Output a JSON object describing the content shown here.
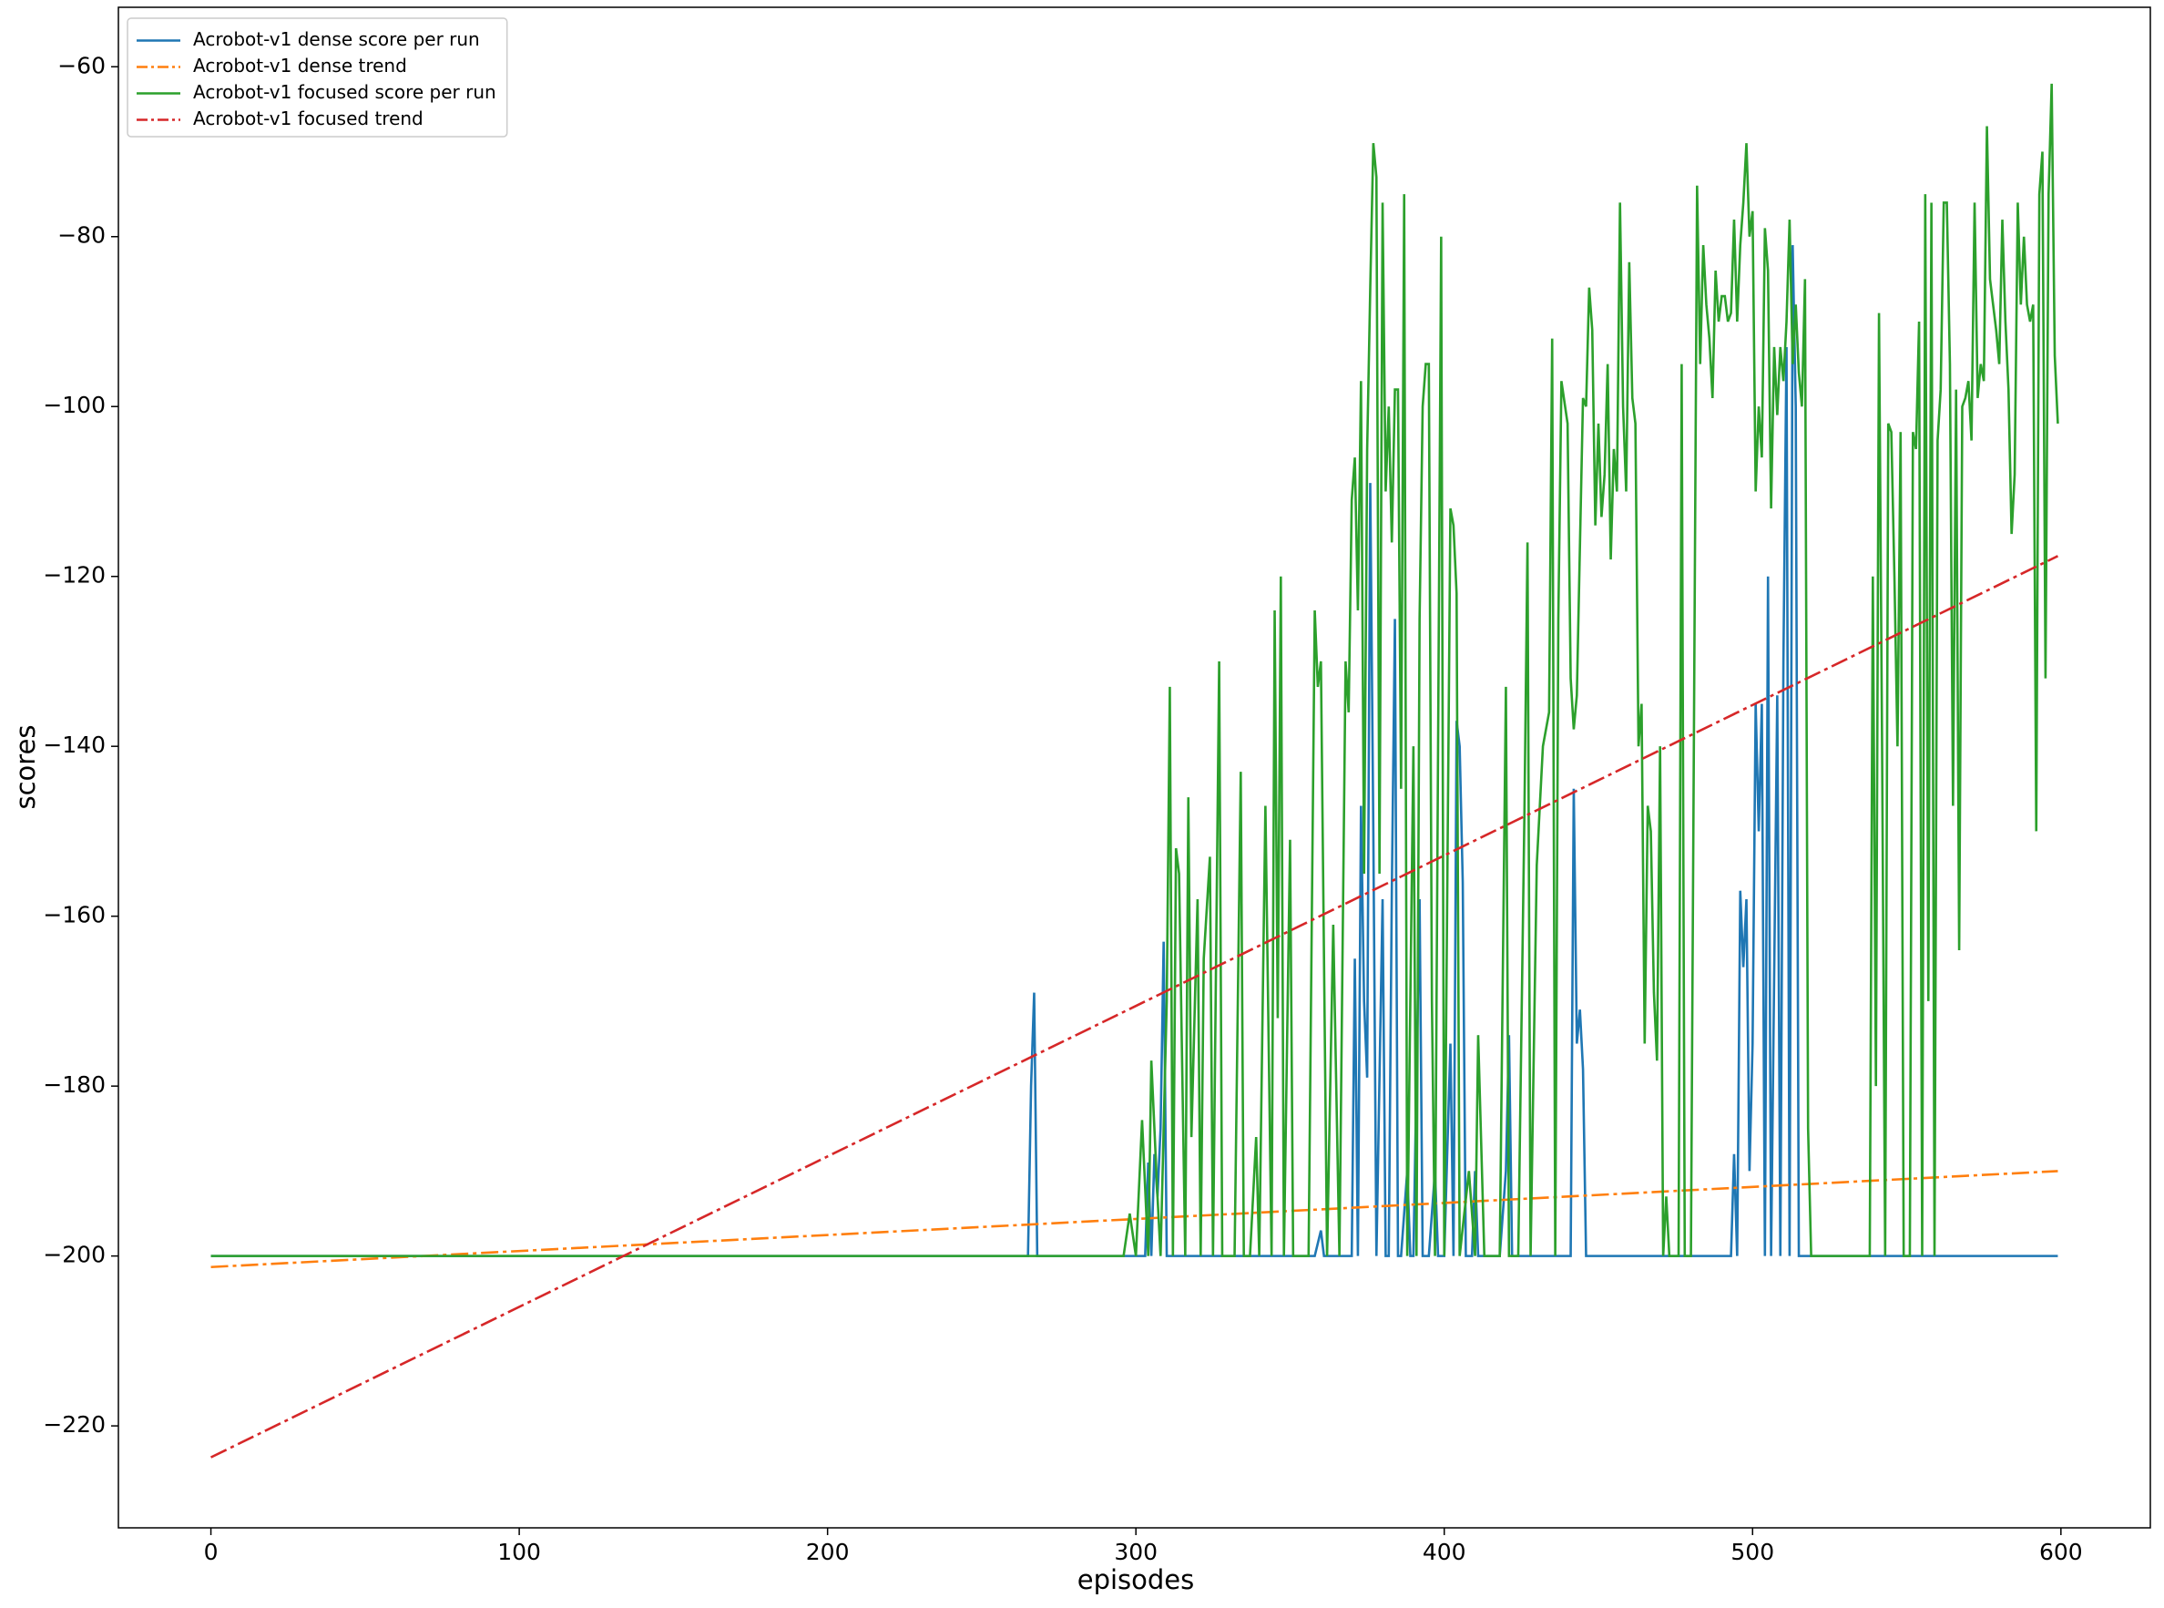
{
  "chart_data": {
    "type": "line",
    "xlabel": "episodes",
    "ylabel": "scores",
    "xlim": [
      -30,
      629
    ],
    "ylim": [
      -232,
      -53
    ],
    "xticks": [
      0,
      100,
      200,
      300,
      400,
      500,
      600
    ],
    "yticks": [
      {
        "value": -220,
        "label": "−220"
      },
      {
        "value": -200,
        "label": "−200"
      },
      {
        "value": -180,
        "label": "−180"
      },
      {
        "value": -160,
        "label": "−160"
      },
      {
        "value": -140,
        "label": "−140"
      },
      {
        "value": -120,
        "label": "−120"
      },
      {
        "value": -100,
        "label": "−100"
      },
      {
        "value": -80,
        "label": "−80"
      },
      {
        "value": -60,
        "label": "−60"
      }
    ],
    "grid": false,
    "legend": "upper left",
    "series": [
      {
        "name": "Acrobot-v1 dense score per run",
        "color": "#1f77b4",
        "style": "solid",
        "x": [
          0,
          265,
          266,
          267,
          268,
          303,
          304,
          305,
          306,
          307,
          308,
          309,
          310,
          358,
          360,
          361,
          370,
          371,
          372,
          373,
          374,
          375,
          376,
          377,
          378,
          380,
          381,
          382,
          383,
          384,
          385,
          386,
          388,
          389,
          390,
          392,
          393,
          395,
          397,
          398,
          400,
          402,
          403,
          404,
          405,
          406,
          407,
          409,
          410,
          411,
          418,
          420,
          421,
          422,
          441,
          442,
          443,
          444,
          445,
          446,
          493,
          494,
          495,
          496,
          497,
          498,
          499,
          500,
          501,
          502,
          503,
          504,
          505,
          506,
          508,
          509,
          510,
          511,
          512,
          513,
          514,
          515,
          599
        ],
        "values": [
          -200,
          -200,
          -180,
          -169,
          -200,
          -200,
          -189,
          -200,
          -188,
          -193,
          -185,
          -163,
          -200,
          -200,
          -197,
          -200,
          -200,
          -165,
          -200,
          -147,
          -170,
          -179,
          -109,
          -150,
          -200,
          -158,
          -200,
          -200,
          -157,
          -125,
          -200,
          -200,
          -190,
          -200,
          -200,
          -158,
          -200,
          -200,
          -190,
          -200,
          -200,
          -175,
          -200,
          -137,
          -140,
          -156,
          -200,
          -200,
          -190,
          -200,
          -200,
          -190,
          -174,
          -200,
          -200,
          -145,
          -175,
          -171,
          -178,
          -200,
          -200,
          -188,
          -200,
          -157,
          -166,
          -158,
          -190,
          -175,
          -135,
          -150,
          -135,
          -200,
          -120,
          -200,
          -134,
          -200,
          -130,
          -93,
          -200,
          -81,
          -100,
          -200,
          -200
        ]
      },
      {
        "name": "Acrobot-v1 dense trend",
        "color": "#ff7f0e",
        "style": "dashdot",
        "x": [
          0,
          599
        ],
        "values": [
          -201.3,
          -190
        ]
      },
      {
        "name": "Acrobot-v1 focused score per run",
        "color": "#2ca02c",
        "style": "solid",
        "x": [
          0,
          296,
          298,
          300,
          302,
          304,
          305,
          307,
          308,
          310,
          311,
          312,
          313,
          314,
          316,
          317,
          318,
          320,
          321,
          322,
          324,
          325,
          327,
          328,
          332,
          334,
          335,
          337,
          339,
          340,
          342,
          344,
          345,
          346,
          347,
          348,
          350,
          351,
          356,
          358,
          359,
          360,
          362,
          364,
          366,
          368,
          369,
          370,
          371,
          372,
          373,
          374,
          375,
          376,
          377,
          378,
          379,
          380,
          381,
          382,
          383,
          384,
          385,
          386,
          387,
          388,
          390,
          391,
          392,
          393,
          394,
          395,
          396,
          397,
          399,
          400,
          402,
          403,
          404,
          405,
          408,
          410,
          411,
          413,
          418,
          420,
          421,
          424,
          426,
          427,
          428,
          430,
          432,
          434,
          435,
          436,
          437,
          438,
          440,
          441,
          442,
          443,
          445,
          446,
          447,
          448,
          449,
          450,
          451,
          452,
          453,
          454,
          455,
          456,
          457,
          458,
          459,
          460,
          461,
          462,
          463,
          464,
          465,
          466,
          467,
          468,
          469,
          470,
          471,
          472,
          473,
          476,
          477,
          478,
          480,
          482,
          483,
          484,
          485,
          486,
          487,
          488,
          489,
          490,
          491,
          492,
          493,
          494,
          495,
          496,
          497,
          498,
          499,
          500,
          501,
          502,
          503,
          504,
          505,
          506,
          507,
          508,
          509,
          510,
          511,
          512,
          513,
          514,
          515,
          516,
          517,
          518,
          519,
          538,
          539,
          540,
          541,
          542,
          543,
          544,
          545,
          546,
          547,
          548,
          549,
          551,
          552,
          553,
          554,
          555,
          556,
          557,
          558,
          559,
          560,
          561,
          562,
          563,
          564,
          565,
          566,
          567,
          568,
          569,
          570,
          571,
          572,
          573,
          574,
          575,
          576,
          577,
          578,
          579,
          580,
          581,
          582,
          583,
          584,
          585,
          586,
          587,
          588,
          589,
          590,
          591,
          592,
          593,
          594,
          595,
          596,
          597,
          598,
          599
        ],
        "values": [
          -200,
          -200,
          -195,
          -200,
          -184,
          -200,
          -177,
          -193,
          -200,
          -170,
          -133,
          -200,
          -152,
          -155,
          -200,
          -146,
          -186,
          -158,
          -200,
          -165,
          -153,
          -200,
          -130,
          -200,
          -200,
          -143,
          -200,
          -200,
          -186,
          -200,
          -147,
          -200,
          -124,
          -172,
          -120,
          -200,
          -151,
          -200,
          -200,
          -124,
          -133,
          -130,
          -200,
          -161,
          -200,
          -130,
          -136,
          -111,
          -106,
          -124,
          -97,
          -155,
          -105,
          -86,
          -69,
          -73,
          -155,
          -76,
          -110,
          -100,
          -116,
          -98,
          -98,
          -145,
          -75,
          -200,
          -140,
          -200,
          -125,
          -100,
          -95,
          -95,
          -170,
          -200,
          -80,
          -200,
          -112,
          -114,
          -122,
          -200,
          -190,
          -200,
          -174,
          -200,
          -200,
          -133,
          -200,
          -200,
          -148,
          -116,
          -200,
          -154,
          -140,
          -136,
          -92,
          -200,
          -125,
          -97,
          -102,
          -132,
          -138,
          -134,
          -99,
          -100,
          -86,
          -91,
          -114,
          -102,
          -113,
          -108,
          -95,
          -118,
          -105,
          -110,
          -76,
          -100,
          -110,
          -83,
          -99,
          -102,
          -140,
          -135,
          -175,
          -147,
          -150,
          -169,
          -177,
          -140,
          -200,
          -193,
          -200,
          -200,
          -95,
          -200,
          -200,
          -74,
          -95,
          -81,
          -88,
          -92,
          -99,
          -84,
          -90,
          -87,
          -87,
          -90,
          -89,
          -78,
          -90,
          -81,
          -76,
          -69,
          -80,
          -77,
          -110,
          -100,
          -106,
          -79,
          -84,
          -112,
          -93,
          -101,
          -93,
          -97,
          -90,
          -78,
          -95,
          -88,
          -96,
          -100,
          -85,
          -185,
          -200,
          -200,
          -120,
          -180,
          -89,
          -140,
          -200,
          -102,
          -103,
          -120,
          -140,
          -103,
          -200,
          -200,
          -103,
          -105,
          -90,
          -200,
          -75,
          -170,
          -76,
          -200,
          -104,
          -98,
          -76,
          -76,
          -95,
          -147,
          -98,
          -164,
          -100,
          -99,
          -97,
          -104,
          -76,
          -99,
          -95,
          -97,
          -67,
          -85,
          -88,
          -91,
          -95,
          -78,
          -90,
          -98,
          -115,
          -108,
          -76,
          -88,
          -80,
          -88,
          -90,
          -88,
          -150,
          -75,
          -70,
          -132,
          -75,
          -62,
          -94,
          -102
        ]
      },
      {
        "name": "Acrobot-v1 focused trend",
        "color": "#d62728",
        "style": "dashdot",
        "x": [
          0,
          599
        ],
        "values": [
          -223.7,
          -117.6
        ]
      }
    ]
  }
}
